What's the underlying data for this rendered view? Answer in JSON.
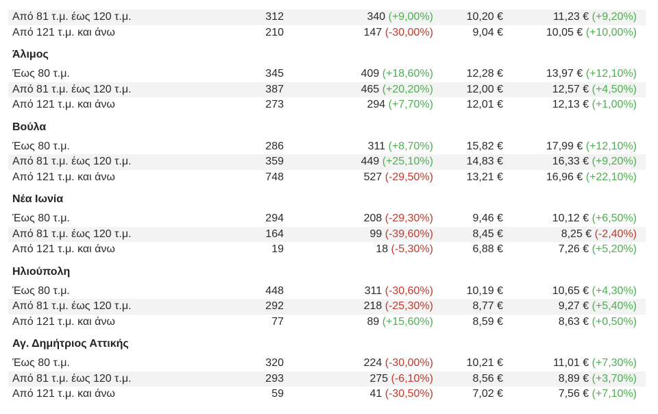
{
  "colors": {
    "positive": "#4caf50",
    "negative": "#c0392b",
    "row_shade": "#f3f3f3"
  },
  "sections": [
    {
      "region": "",
      "rows": [
        {
          "size": "Από 81 τ.μ. έως 120 τ.μ.",
          "a": "312",
          "b": "340",
          "b_change": "(+9,00%)",
          "b_dir": "pos",
          "c": "10,20 €",
          "d": "11,23 €",
          "d_change": "(+9,20%)",
          "d_dir": "pos"
        },
        {
          "size": "Από 121 τ.μ. και άνω",
          "a": "210",
          "b": "147",
          "b_change": "(-30,00%)",
          "b_dir": "neg",
          "c": "9,04 €",
          "d": "10,05 €",
          "d_change": "(+10,00%)",
          "d_dir": "pos"
        }
      ]
    },
    {
      "region": "Άλιμος",
      "rows": [
        {
          "size": "Έως 80 τ.μ.",
          "a": "345",
          "b": "409",
          "b_change": "(+18,60%)",
          "b_dir": "pos",
          "c": "12,28 €",
          "d": "13,97 €",
          "d_change": "(+12,10%)",
          "d_dir": "pos"
        },
        {
          "size": "Από 81 τ.μ. έως 120 τ.μ.",
          "a": "387",
          "b": "465",
          "b_change": "(+20,20%)",
          "b_dir": "pos",
          "c": "12,00 €",
          "d": "12,57 €",
          "d_change": "(+4,50%)",
          "d_dir": "pos"
        },
        {
          "size": "Από 121 τ.μ. και άνω",
          "a": "273",
          "b": "294",
          "b_change": "(+7,70%)",
          "b_dir": "pos",
          "c": "12,01 €",
          "d": "12,13 €",
          "d_change": "(+1,00%)",
          "d_dir": "pos"
        }
      ]
    },
    {
      "region": "Βούλα",
      "rows": [
        {
          "size": "Έως 80 τ.μ.",
          "a": "286",
          "b": "311",
          "b_change": "(+8,70%)",
          "b_dir": "pos",
          "c": "15,82 €",
          "d": "17,99 €",
          "d_change": "(+12,10%)",
          "d_dir": "pos"
        },
        {
          "size": "Από 81 τ.μ. έως 120 τ.μ.",
          "a": "359",
          "b": "449",
          "b_change": "(+25,10%)",
          "b_dir": "pos",
          "c": "14,83 €",
          "d": "16,33 €",
          "d_change": "(+9,20%)",
          "d_dir": "pos"
        },
        {
          "size": "Από 121 τ.μ. και άνω",
          "a": "748",
          "b": "527",
          "b_change": "(-29,50%)",
          "b_dir": "neg",
          "c": "13,21 €",
          "d": "16,96 €",
          "d_change": "(+22,10%)",
          "d_dir": "pos"
        }
      ]
    },
    {
      "region": "Νέα Ιωνία",
      "rows": [
        {
          "size": "Έως 80 τ.μ.",
          "a": "294",
          "b": "208",
          "b_change": "(-29,30%)",
          "b_dir": "neg",
          "c": "9,46 €",
          "d": "10,12 €",
          "d_change": "(+6,50%)",
          "d_dir": "pos"
        },
        {
          "size": "Από 81 τ.μ. έως 120 τ.μ.",
          "a": "164",
          "b": "99",
          "b_change": "(-39,60%)",
          "b_dir": "neg",
          "c": "8,45 €",
          "d": "8,25 €",
          "d_change": "(-2,40%)",
          "d_dir": "neg"
        },
        {
          "size": "Από 121 τ.μ. και άνω",
          "a": "19",
          "b": "18",
          "b_change": "(-5,30%)",
          "b_dir": "neg",
          "c": "6,88 €",
          "d": "7,26 €",
          "d_change": "(+5,20%)",
          "d_dir": "pos"
        }
      ]
    },
    {
      "region": "Ηλιούπολη",
      "rows": [
        {
          "size": "Έως 80 τ.μ.",
          "a": "448",
          "b": "311",
          "b_change": "(-30,60%)",
          "b_dir": "neg",
          "c": "10,19 €",
          "d": "10,65 €",
          "d_change": "(+4,30%)",
          "d_dir": "pos"
        },
        {
          "size": "Από 81 τ.μ. έως 120 τ.μ.",
          "a": "292",
          "b": "218",
          "b_change": "(-25,30%)",
          "b_dir": "neg",
          "c": "8,77 €",
          "d": "9,27 €",
          "d_change": "(+5,40%)",
          "d_dir": "pos"
        },
        {
          "size": "Από 121 τ.μ. και άνω",
          "a": "77",
          "b": "89",
          "b_change": "(+15,60%)",
          "b_dir": "pos",
          "c": "8,59 €",
          "d": "8,63 €",
          "d_change": "(+0,50%)",
          "d_dir": "pos"
        }
      ]
    },
    {
      "region": "Αγ. Δημήτριος Αττικής",
      "rows": [
        {
          "size": "Έως 80 τ.μ.",
          "a": "320",
          "b": "224",
          "b_change": "(-30,00%)",
          "b_dir": "neg",
          "c": "10,21 €",
          "d": "11,01 €",
          "d_change": "(+7,30%)",
          "d_dir": "pos"
        },
        {
          "size": "Από 81 τ.μ. έως 120 τ.μ.",
          "a": "293",
          "b": "275",
          "b_change": "(-6,10%)",
          "b_dir": "neg",
          "c": "8,56 €",
          "d": "8,89 €",
          "d_change": "(+3,70%)",
          "d_dir": "pos"
        },
        {
          "size": "Από 121 τ.μ. και άνω",
          "a": "59",
          "b": "41",
          "b_change": "(-30,50%)",
          "b_dir": "neg",
          "c": "7,02 €",
          "d": "7,56 €",
          "d_change": "(+7,10%)",
          "d_dir": "pos"
        }
      ]
    }
  ]
}
